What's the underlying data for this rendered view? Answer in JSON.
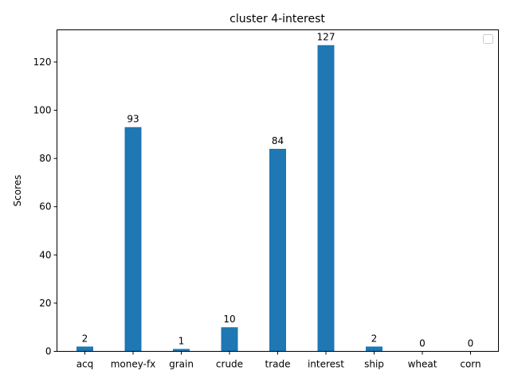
{
  "chart_data": {
    "type": "bar",
    "title": "cluster 4-interest",
    "xlabel": "",
    "ylabel": "Scores",
    "categories": [
      "acq",
      "money-fx",
      "grain",
      "crude",
      "trade",
      "interest",
      "ship",
      "wheat",
      "corn"
    ],
    "values": [
      2,
      93,
      1,
      10,
      84,
      127,
      2,
      0,
      0
    ],
    "ylim": [
      0,
      133.35
    ],
    "yticks": [
      0,
      20,
      40,
      60,
      80,
      100,
      120
    ],
    "bar_color": "#1f77b4",
    "legend": {
      "position": "top-right",
      "entries": []
    },
    "grid": false
  }
}
